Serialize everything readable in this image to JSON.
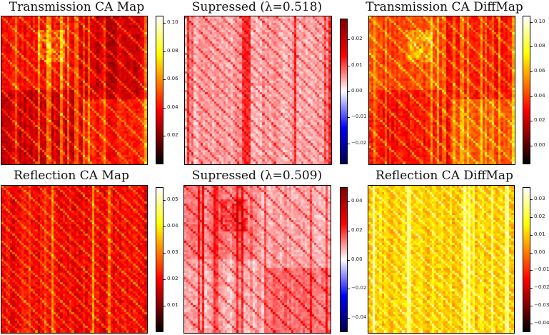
{
  "chart_data": [
    {
      "type": "heatmap",
      "title": "Transmission CA Map",
      "colormap": "hot",
      "colorbar_ticks": [
        0.1,
        0.08,
        0.06,
        0.04,
        0.02
      ],
      "colorbar_labels": [
        "0.10",
        "0.08",
        "0.06",
        "0.04",
        "0.02"
      ],
      "vmin": 0.0,
      "vmax": 0.105,
      "pattern": "block",
      "level": 0.25
    },
    {
      "type": "heatmap",
      "title": "Supressed (λ=0.518)",
      "colormap": "seismic",
      "colorbar_ticks": [
        0.02,
        0.01,
        0.0,
        -0.01,
        -0.02
      ],
      "colorbar_labels": [
        "0.02",
        "0.01",
        "0.00",
        "−0.01",
        "−0.02"
      ],
      "vmin": -0.028,
      "vmax": 0.028,
      "pattern": "diag",
      "level": 0.2
    },
    {
      "type": "heatmap",
      "title": "Transmission CA DiffMap",
      "colormap": "hot",
      "colorbar_ticks": [
        0.1,
        0.08,
        0.06,
        0.04,
        0.02,
        0.0
      ],
      "colorbar_labels": [
        "0.10",
        "0.08",
        "0.06",
        "0.04",
        "0.02",
        "0.00"
      ],
      "vmin": -0.015,
      "vmax": 0.105,
      "pattern": "block",
      "level": 0.33
    },
    {
      "type": "heatmap",
      "title": "Reflection CA Map",
      "colormap": "hot",
      "colorbar_ticks": [
        0.05,
        0.04,
        0.03,
        0.02,
        0.01
      ],
      "colorbar_labels": [
        "0.05",
        "0.04",
        "0.03",
        "0.02",
        "0.01"
      ],
      "vmin": 0.0,
      "vmax": 0.055,
      "pattern": "diag",
      "level": 0.3
    },
    {
      "type": "heatmap",
      "title": "Supressed (λ=0.509)",
      "colormap": "seismic",
      "colorbar_ticks": [
        0.04,
        0.02,
        0.0,
        -0.02,
        -0.04
      ],
      "colorbar_labels": [
        "0.04",
        "0.02",
        "0.00",
        "−0.02",
        "−0.04"
      ],
      "vmin": -0.05,
      "vmax": 0.05,
      "pattern": "block",
      "level": 0.12
    },
    {
      "type": "heatmap",
      "title": "Reflection CA DiffMap",
      "colormap": "hot",
      "colorbar_ticks": [
        0.03,
        0.02,
        0.01,
        0.0,
        -0.01,
        -0.02,
        -0.03,
        -0.04
      ],
      "colorbar_labels": [
        "0.03",
        "0.02",
        "0.01",
        "0.00",
        "−0.01",
        "−0.02",
        "−0.03",
        "−0.04"
      ],
      "vmin": -0.045,
      "vmax": 0.037,
      "pattern": "diag",
      "level": 0.62
    }
  ]
}
